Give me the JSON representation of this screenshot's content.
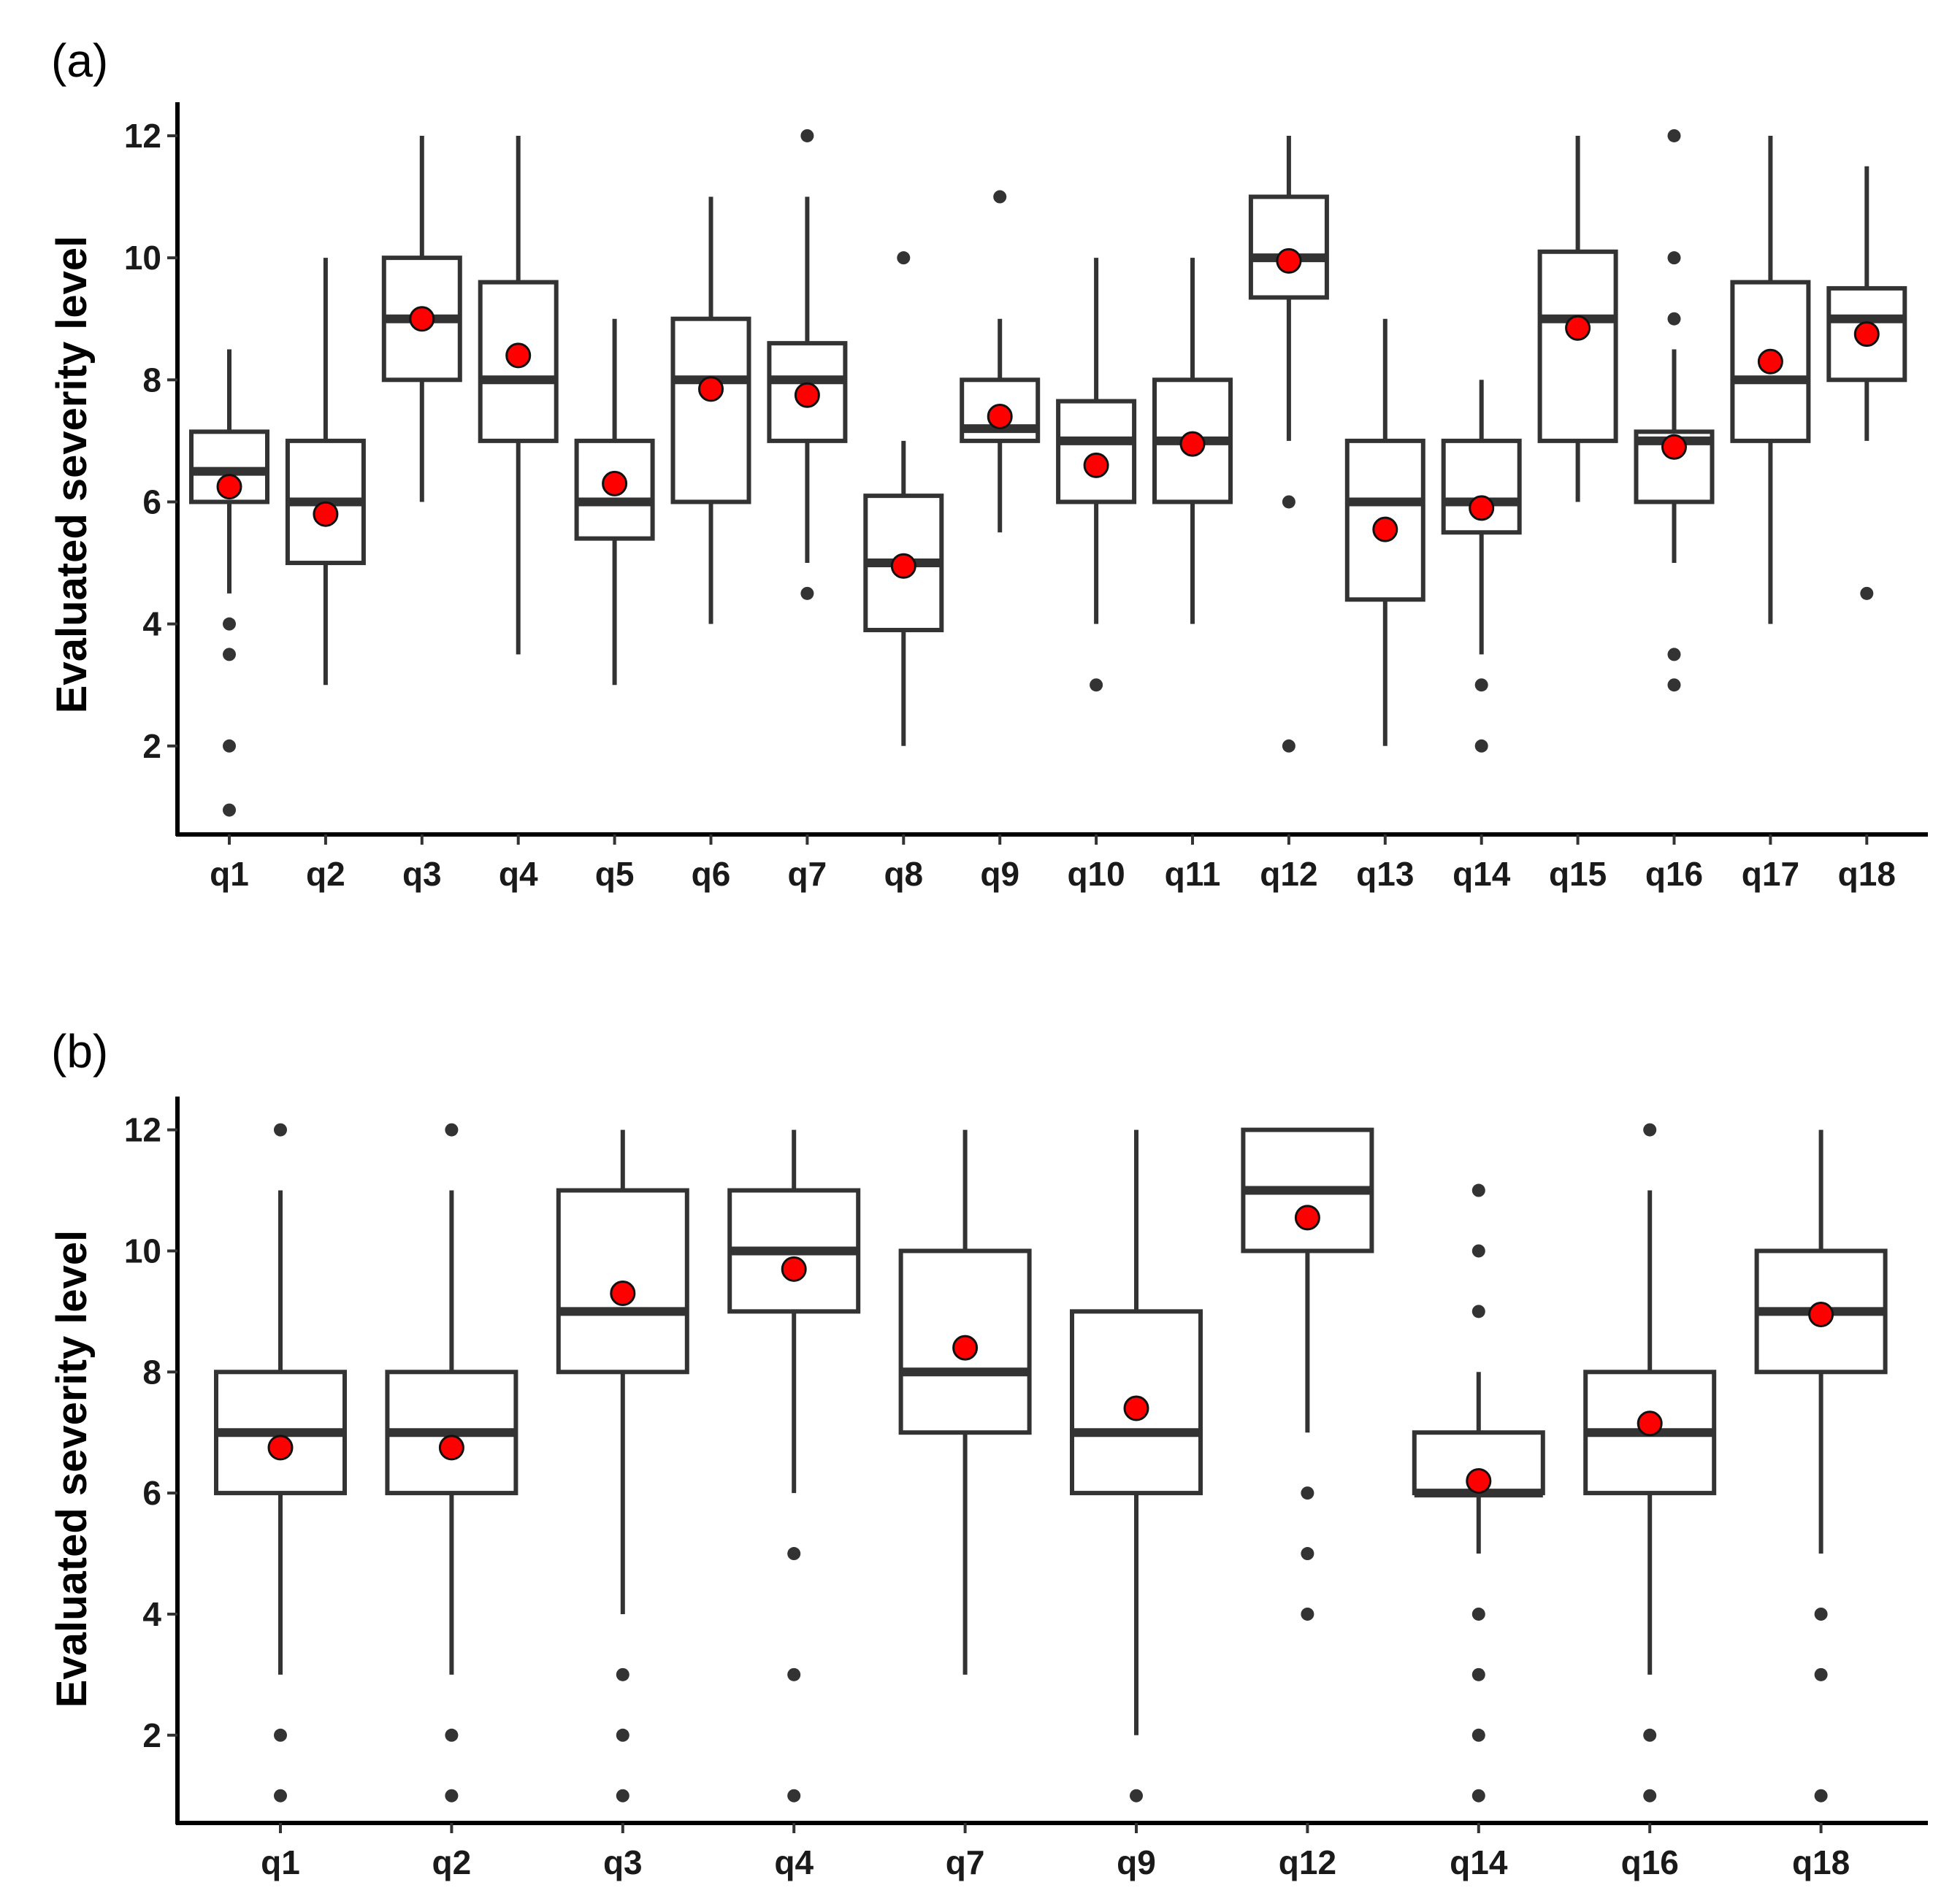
{
  "chart_data": [
    {
      "type": "box",
      "panel_label": "(a)",
      "ylabel": "Evaluated severity level",
      "ylim": [
        0.55,
        12.55
      ],
      "yticks": [
        2,
        4,
        6,
        8,
        10,
        12
      ],
      "ytick_labels": [
        "2",
        "4",
        "6",
        "8",
        "10",
        "12"
      ],
      "categories": [
        "q1",
        "q2",
        "q3",
        "q4",
        "q5",
        "q6",
        "q7",
        "q8",
        "q9",
        "q10",
        "q11",
        "q12",
        "q13",
        "q14",
        "q15",
        "q16",
        "q17",
        "q18"
      ],
      "boxes": [
        {
          "q1": 6,
          "median": 6.5,
          "q3": 7.15,
          "whisker_low": 4.5,
          "whisker_high": 8.5,
          "mean": 6.25,
          "outliers": [
            4,
            3.5,
            2,
            0.95
          ]
        },
        {
          "q1": 5,
          "median": 6,
          "q3": 7,
          "whisker_low": 3,
          "whisker_high": 10,
          "mean": 5.8,
          "outliers": []
        },
        {
          "q1": 8,
          "median": 9,
          "q3": 10,
          "whisker_low": 6,
          "whisker_high": 12,
          "mean": 9,
          "outliers": []
        },
        {
          "q1": 7,
          "median": 8,
          "q3": 9.6,
          "whisker_low": 3.5,
          "whisker_high": 12,
          "mean": 8.4,
          "outliers": []
        },
        {
          "q1": 5.4,
          "median": 6,
          "q3": 7,
          "whisker_low": 3,
          "whisker_high": 9,
          "mean": 6.3,
          "outliers": []
        },
        {
          "q1": 6,
          "median": 8,
          "q3": 9,
          "whisker_low": 4,
          "whisker_high": 11,
          "mean": 7.85,
          "outliers": []
        },
        {
          "q1": 7,
          "median": 8,
          "q3": 8.6,
          "whisker_low": 5,
          "whisker_high": 11,
          "mean": 7.75,
          "outliers": [
            12,
            4.5
          ]
        },
        {
          "q1": 3.9,
          "median": 5,
          "q3": 6.1,
          "whisker_low": 2,
          "whisker_high": 7,
          "mean": 4.95,
          "outliers": [
            10
          ]
        },
        {
          "q1": 7,
          "median": 7.2,
          "q3": 8,
          "whisker_low": 5.5,
          "whisker_high": 9,
          "mean": 7.4,
          "outliers": [
            11
          ]
        },
        {
          "q1": 6,
          "median": 7,
          "q3": 7.65,
          "whisker_low": 4,
          "whisker_high": 10,
          "mean": 6.6,
          "outliers": [
            3
          ]
        },
        {
          "q1": 6,
          "median": 7,
          "q3": 8,
          "whisker_low": 4,
          "whisker_high": 10,
          "mean": 6.95,
          "outliers": []
        },
        {
          "q1": 9.35,
          "median": 10,
          "q3": 11,
          "whisker_low": 7,
          "whisker_high": 12,
          "mean": 9.95,
          "outliers": [
            6,
            2
          ]
        },
        {
          "q1": 4.4,
          "median": 6,
          "q3": 7,
          "whisker_low": 2,
          "whisker_high": 9,
          "mean": 5.55,
          "outliers": []
        },
        {
          "q1": 5.5,
          "median": 6,
          "q3": 7,
          "whisker_low": 3.5,
          "whisker_high": 8,
          "mean": 5.9,
          "outliers": [
            3,
            2
          ]
        },
        {
          "q1": 7,
          "median": 9,
          "q3": 10.1,
          "whisker_low": 6,
          "whisker_high": 12,
          "mean": 8.85,
          "outliers": []
        },
        {
          "q1": 6,
          "median": 7,
          "q3": 7.15,
          "whisker_low": 5,
          "whisker_high": 8.5,
          "mean": 6.9,
          "outliers": [
            12,
            10,
            9,
            3.5,
            3
          ]
        },
        {
          "q1": 7,
          "median": 8,
          "q3": 9.6,
          "whisker_low": 4,
          "whisker_high": 12,
          "mean": 8.3,
          "outliers": []
        },
        {
          "q1": 8,
          "median": 9,
          "q3": 9.5,
          "whisker_low": 7,
          "whisker_high": 11.5,
          "mean": 8.75,
          "outliers": [
            4.5
          ]
        }
      ],
      "colors": {
        "box": "#333333",
        "mean_fill": "#ff0000",
        "mean_stroke": "#111111",
        "outlier": "#333333"
      }
    },
    {
      "type": "box",
      "panel_label": "(b)",
      "ylabel": "Evaluated severity level",
      "ylim": [
        0.55,
        12.55
      ],
      "yticks": [
        2,
        4,
        6,
        8,
        10,
        12
      ],
      "ytick_labels": [
        "2",
        "4",
        "6",
        "8",
        "10",
        "12"
      ],
      "categories": [
        "q1",
        "q2",
        "q3",
        "q4",
        "q7",
        "q9",
        "q12",
        "q14",
        "q16",
        "q18"
      ],
      "boxes": [
        {
          "q1": 6,
          "median": 7,
          "q3": 8,
          "whisker_low": 3,
          "whisker_high": 11,
          "mean": 6.75,
          "outliers": [
            12,
            2,
            1
          ]
        },
        {
          "q1": 6,
          "median": 7,
          "q3": 8,
          "whisker_low": 3,
          "whisker_high": 11,
          "mean": 6.75,
          "outliers": [
            12,
            2,
            1
          ]
        },
        {
          "q1": 8,
          "median": 9,
          "q3": 11,
          "whisker_low": 4,
          "whisker_high": 12,
          "mean": 9.3,
          "outliers": [
            3,
            2,
            1
          ]
        },
        {
          "q1": 9,
          "median": 10,
          "q3": 11,
          "whisker_low": 6,
          "whisker_high": 12,
          "mean": 9.7,
          "outliers": [
            5,
            3,
            1
          ]
        },
        {
          "q1": 7,
          "median": 8,
          "q3": 10,
          "whisker_low": 3,
          "whisker_high": 12,
          "mean": 8.4,
          "outliers": []
        },
        {
          "q1": 6,
          "median": 7,
          "q3": 9,
          "whisker_low": 2,
          "whisker_high": 12,
          "mean": 7.4,
          "outliers": [
            1
          ]
        },
        {
          "q1": 10,
          "median": 11,
          "q3": 12,
          "whisker_low": 7,
          "whisker_high": 12,
          "mean": 10.55,
          "outliers": [
            6,
            5,
            4
          ]
        },
        {
          "q1": 6,
          "median": 6,
          "q3": 7,
          "whisker_low": 5,
          "whisker_high": 8,
          "mean": 6.2,
          "outliers": [
            11,
            10,
            9,
            4,
            3,
            2,
            1
          ]
        },
        {
          "q1": 6,
          "median": 7,
          "q3": 8,
          "whisker_low": 3,
          "whisker_high": 11,
          "mean": 7.15,
          "outliers": [
            12,
            2,
            1
          ]
        },
        {
          "q1": 8,
          "median": 9,
          "q3": 10,
          "whisker_low": 5,
          "whisker_high": 12,
          "mean": 8.95,
          "outliers": [
            4,
            3,
            1
          ]
        }
      ],
      "colors": {
        "box": "#333333",
        "mean_fill": "#ff0000",
        "mean_stroke": "#111111",
        "outlier": "#333333"
      }
    }
  ]
}
